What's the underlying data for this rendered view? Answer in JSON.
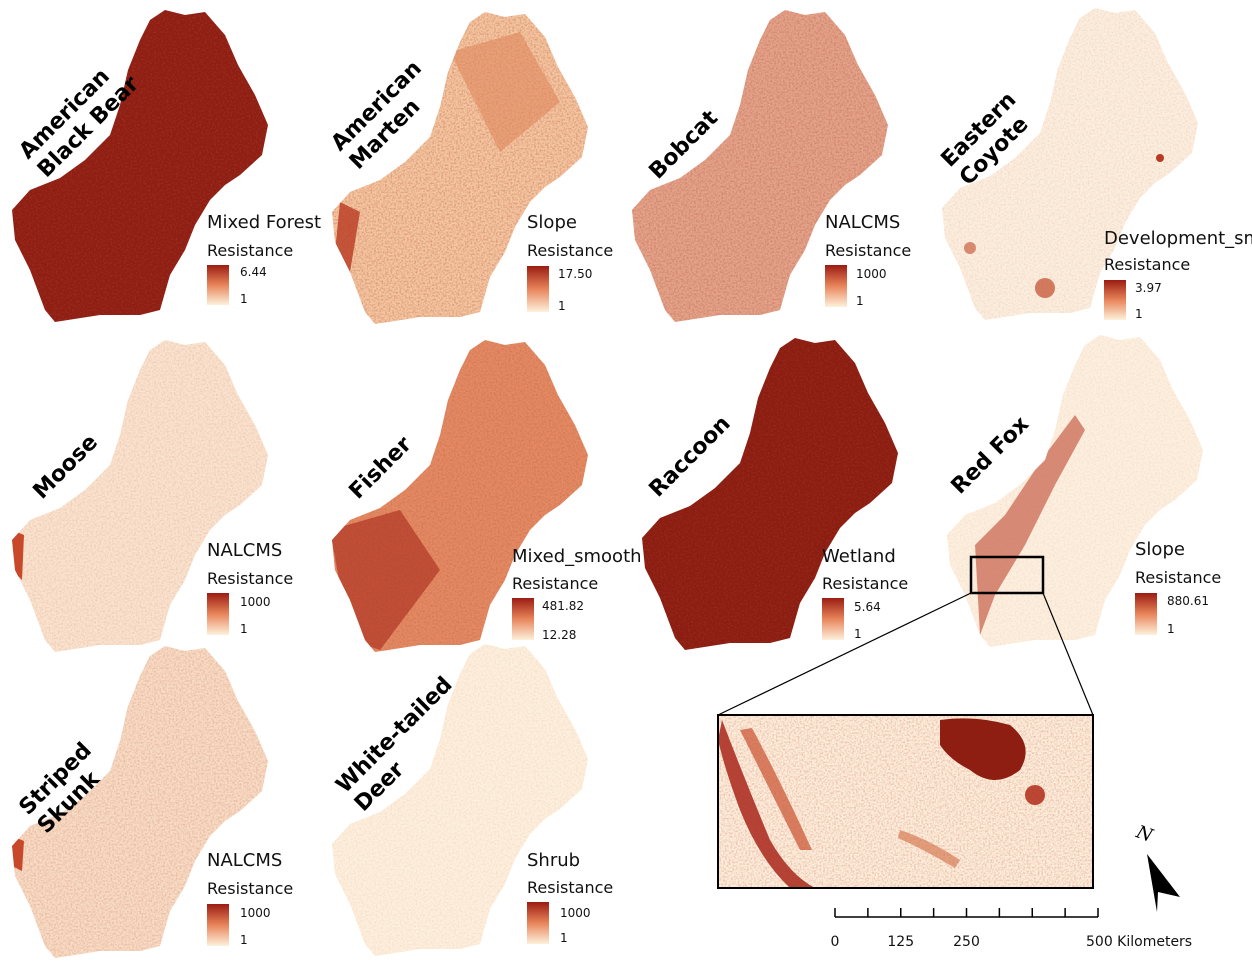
{
  "panels": [
    {
      "species": [
        "American",
        "Black Bear"
      ],
      "variable": "Mixed Forest",
      "legend_title": "Resistance",
      "max": "6.44",
      "min": "1",
      "density": 0.85
    },
    {
      "species": [
        "American",
        "Marten"
      ],
      "variable": "Slope",
      "legend_title": "Resistance",
      "max": "17.50",
      "min": "1",
      "density": 0.3
    },
    {
      "species": [
        "Bobcat"
      ],
      "variable": "NALCMS",
      "legend_title": "Resistance",
      "max": "1000",
      "min": "1",
      "density": 0.5
    },
    {
      "species": [
        "Eastern",
        "Coyote"
      ],
      "variable": "Development_sm",
      "legend_title": "Resistance",
      "max": "3.97",
      "min": "1",
      "density": 0.08
    },
    {
      "species": [
        "Moose"
      ],
      "variable": "NALCMS",
      "legend_title": "Resistance",
      "max": "1000",
      "min": "1",
      "density": 0.18
    },
    {
      "species": [
        "Fisher"
      ],
      "variable": "Mixed_smooth",
      "legend_title": "Resistance",
      "max": "481.82",
      "min": "12.28",
      "density": 0.55
    },
    {
      "species": [
        "Raccoon"
      ],
      "variable": "Wetland",
      "legend_title": "Resistance",
      "max": "5.64",
      "min": "1",
      "density": 0.9
    },
    {
      "species": [
        "Red Fox"
      ],
      "variable": "Slope",
      "legend_title": "Resistance",
      "max": "880.61",
      "min": "1",
      "density": 0.05
    },
    {
      "species": [
        "Striped",
        "Skunk"
      ],
      "variable": "NALCMS",
      "legend_title": "Resistance",
      "max": "1000",
      "min": "1",
      "density": 0.2
    },
    {
      "species": [
        "White-tailed",
        "Deer"
      ],
      "variable": "Shrub",
      "legend_title": "Resistance",
      "max": "1000",
      "min": "1",
      "density": 0.1
    }
  ],
  "scale_bar": {
    "labels": [
      "0",
      "125",
      "250",
      "500 Kilometers"
    ],
    "ticks_km": [
      0,
      62.5,
      125,
      187.5,
      250,
      312.5,
      375,
      437.5,
      500
    ]
  },
  "north_arrow": {
    "label": "N"
  },
  "colors": {
    "low": "#fdf2dc",
    "mid": "#e89a6a",
    "high": "#8b1a10"
  }
}
